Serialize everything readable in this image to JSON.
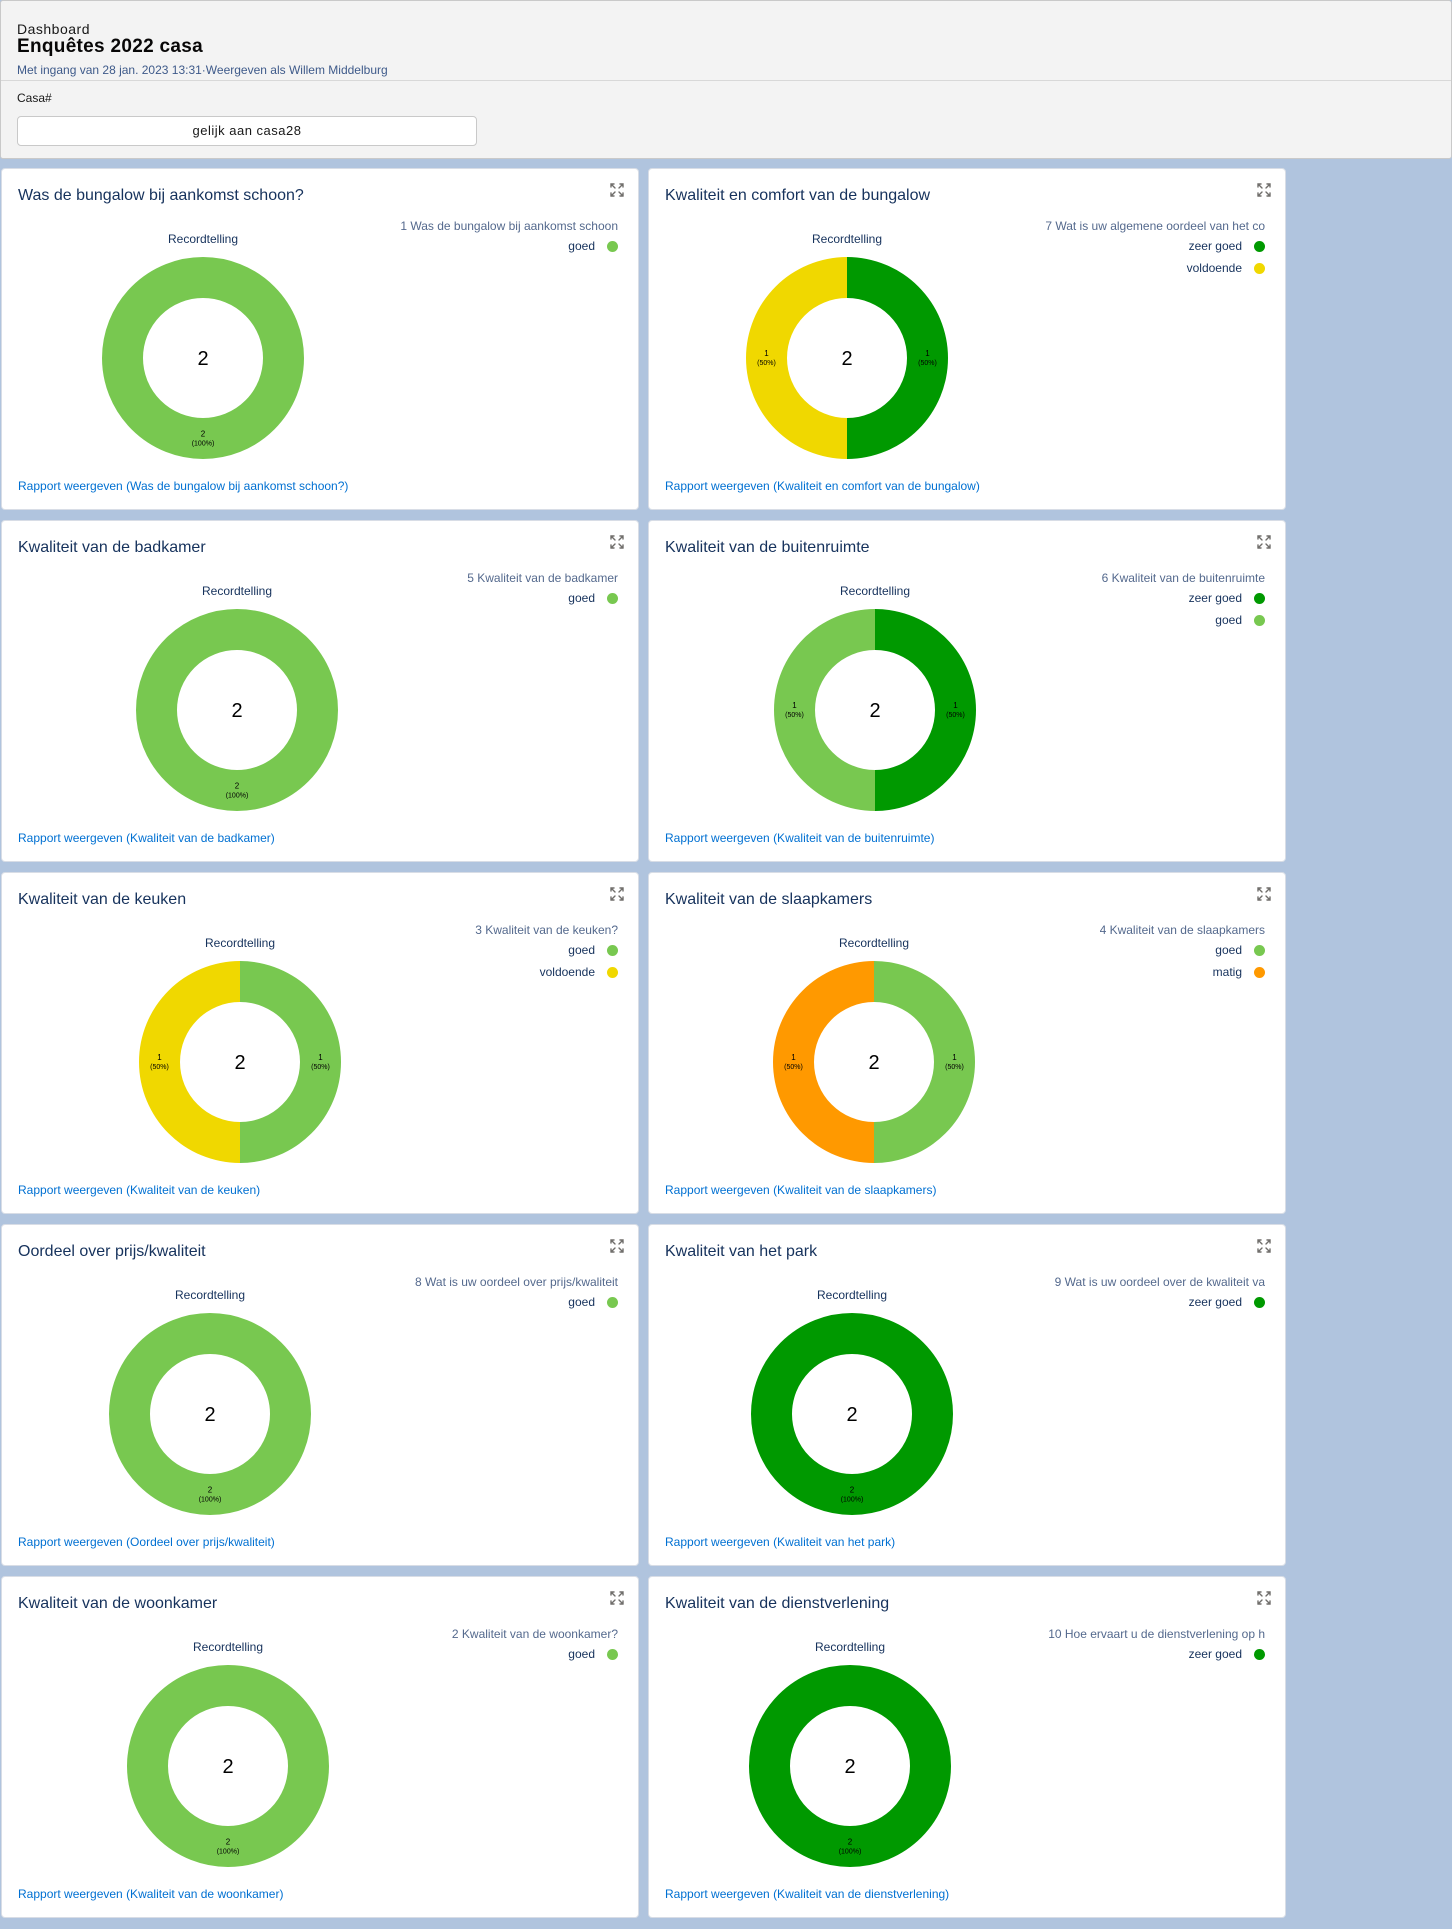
{
  "header": {
    "label": "Dashboard",
    "title": "Enquêtes 2022 casa",
    "subtitle": "Met ingang van 28 jan. 2023 13:31·Weergeven als Willem Middelburg",
    "filter_label": "Casa#",
    "filter_value": "gelijk aan casa28"
  },
  "colors": {
    "zeer_goed": "#009900",
    "goed": "#78c850",
    "voldoende": "#f0d800",
    "matig": "#ff9900"
  },
  "cards": [
    {
      "title": "Was de bungalow bij aankomst schoon?",
      "legend_title": "1 Was de bungalow bij aankomst schoon",
      "count_label": "Recordtelling",
      "total": "2",
      "link": "Rapport weergeven (Was de bungalow bij aankomst schoon?)",
      "chart_data": {
        "type": "pie",
        "segments": [
          {
            "name": "goed",
            "value": 2,
            "label": "2",
            "pct": "(100%)",
            "color": "#78c850"
          }
        ]
      }
    },
    {
      "title": "Kwaliteit en comfort van de bungalow",
      "legend_title": "7 Wat is uw  algemene oordeel van het co",
      "count_label": "Recordtelling",
      "total": "2",
      "link": "Rapport weergeven (Kwaliteit en comfort van de bungalow)",
      "chart_data": {
        "type": "pie",
        "segments": [
          {
            "name": "zeer goed",
            "value": 1,
            "label": "1",
            "pct": "(50%)",
            "color": "#009900"
          },
          {
            "name": "voldoende",
            "value": 1,
            "label": "1",
            "pct": "(50%)",
            "color": "#f0d800"
          }
        ]
      }
    },
    {
      "title": "Kwaliteit van de badkamer",
      "legend_title": "5 Kwaliteit van de badkamer",
      "count_label": "Recordtelling",
      "total": "2",
      "link": "Rapport weergeven (Kwaliteit van de badkamer)",
      "chart_data": {
        "type": "pie",
        "segments": [
          {
            "name": "goed",
            "value": 2,
            "label": "2",
            "pct": "(100%)",
            "color": "#78c850"
          }
        ]
      }
    },
    {
      "title": "Kwaliteit van de buitenruimte",
      "legend_title": "6 Kwaliteit van de buitenruimte",
      "count_label": "Recordtelling",
      "total": "2",
      "link": "Rapport weergeven (Kwaliteit van de buitenruimte)",
      "chart_data": {
        "type": "pie",
        "segments": [
          {
            "name": "zeer goed",
            "value": 1,
            "label": "1",
            "pct": "(50%)",
            "color": "#009900"
          },
          {
            "name": "goed",
            "value": 1,
            "label": "1",
            "pct": "(50%)",
            "color": "#78c850"
          }
        ]
      }
    },
    {
      "title": "Kwaliteit van de keuken",
      "legend_title": "3 Kwaliteit van de keuken?",
      "count_label": "Recordtelling",
      "total": "2",
      "link": "Rapport weergeven (Kwaliteit van de keuken)",
      "chart_data": {
        "type": "pie",
        "segments": [
          {
            "name": "goed",
            "value": 1,
            "label": "1",
            "pct": "(50%)",
            "color": "#78c850"
          },
          {
            "name": "voldoende",
            "value": 1,
            "label": "1",
            "pct": "(50%)",
            "color": "#f0d800"
          }
        ]
      }
    },
    {
      "title": "Kwaliteit van de slaapkamers",
      "legend_title": "4 Kwaliteit van de slaapkamers",
      "count_label": "Recordtelling",
      "total": "2",
      "link": "Rapport weergeven (Kwaliteit van de slaapkamers)",
      "chart_data": {
        "type": "pie",
        "segments": [
          {
            "name": "goed",
            "value": 1,
            "label": "1",
            "pct": "(50%)",
            "color": "#78c850"
          },
          {
            "name": "matig",
            "value": 1,
            "label": "1",
            "pct": "(50%)",
            "color": "#ff9900"
          }
        ]
      }
    },
    {
      "title": "Oordeel over prijs/kwaliteit",
      "legend_title": "8 Wat is uw oordeel over prijs/kwaliteit",
      "count_label": "Recordtelling",
      "total": "2",
      "link": "Rapport weergeven (Oordeel over prijs/kwaliteit)",
      "chart_data": {
        "type": "pie",
        "segments": [
          {
            "name": "goed",
            "value": 2,
            "label": "2",
            "pct": "(100%)",
            "color": "#78c850"
          }
        ]
      }
    },
    {
      "title": "Kwaliteit van het park",
      "legend_title": "9 Wat is uw oordeel over de kwaliteit va",
      "count_label": "Recordtelling",
      "total": "2",
      "link": "Rapport weergeven (Kwaliteit van het park)",
      "chart_data": {
        "type": "pie",
        "segments": [
          {
            "name": "zeer goed",
            "value": 2,
            "label": "2",
            "pct": "(100%)",
            "color": "#009900"
          }
        ]
      }
    },
    {
      "title": "Kwaliteit van de woonkamer",
      "legend_title": "2 Kwaliteit van de woonkamer?",
      "count_label": "Recordtelling",
      "total": "2",
      "link": "Rapport weergeven (Kwaliteit van de woonkamer)",
      "chart_data": {
        "type": "pie",
        "segments": [
          {
            "name": "goed",
            "value": 2,
            "label": "2",
            "pct": "(100%)",
            "color": "#78c850"
          }
        ]
      }
    },
    {
      "title": "Kwaliteit van de dienstverlening",
      "legend_title": "10 Hoe ervaart u de dienstverlening op h",
      "count_label": "Recordtelling",
      "total": "2",
      "link": "Rapport weergeven (Kwaliteit van de dienstverlening)",
      "chart_data": {
        "type": "pie",
        "segments": [
          {
            "name": "zeer goed",
            "value": 2,
            "label": "2",
            "pct": "(100%)",
            "color": "#009900"
          }
        ]
      }
    }
  ]
}
